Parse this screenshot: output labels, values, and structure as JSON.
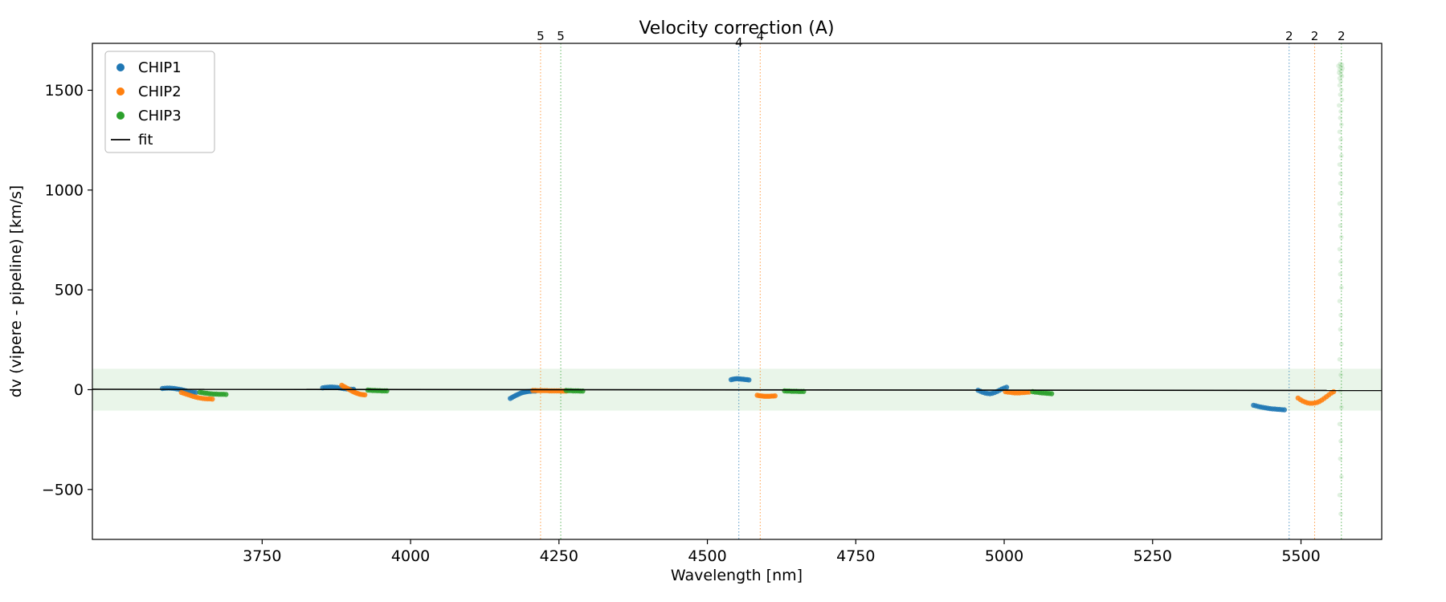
{
  "chart_data": {
    "type": "scatter",
    "title": "Velocity correction (A)",
    "xlabel": "Wavelength [nm]",
    "ylabel": "dv (vipere - pipeline) [km/s]",
    "xlim": [
      3464,
      5636
    ],
    "ylim": [
      -750,
      1735
    ],
    "xticks": [
      3750,
      4000,
      4250,
      4500,
      4750,
      5000,
      5250,
      5500
    ],
    "yticks": [
      -500,
      0,
      500,
      1000,
      1500
    ],
    "grid": false,
    "band": {
      "color": "#2ca02c",
      "alpha": 0.1,
      "ymin": -105,
      "ymax": 105
    },
    "fit": {
      "label": "fit",
      "color": "#000000",
      "x": [
        3464,
        5636
      ],
      "y": [
        2,
        -4
      ]
    },
    "vlines": [
      {
        "x": 4219,
        "label": "5",
        "color": "#ff7f0e"
      },
      {
        "x": 4253,
        "label": "5",
        "color": "#2ca02c"
      },
      {
        "x": 4553,
        "label": "4",
        "color": "#1f77b4",
        "label_dy": 8
      },
      {
        "x": 4589,
        "label": "4",
        "color": "#ff7f0e"
      },
      {
        "x": 5480,
        "label": "2",
        "color": "#1f77b4"
      },
      {
        "x": 5523,
        "label": "2",
        "color": "#ff7f0e"
      },
      {
        "x": 5568,
        "label": "2",
        "color": "#2ca02c"
      }
    ],
    "legend": {
      "position": "upper-left",
      "entries": [
        {
          "label": "CHIP1",
          "color": "#1f77b4",
          "type": "dot"
        },
        {
          "label": "CHIP2",
          "color": "#ff7f0e",
          "type": "dot"
        },
        {
          "label": "CHIP3",
          "color": "#2ca02c",
          "type": "dot"
        },
        {
          "label": "fit",
          "color": "#000000",
          "type": "line"
        }
      ]
    },
    "series": [
      {
        "name": "CHIP1",
        "color": "#1f77b4",
        "alpha": 0.85,
        "marker_size": 3.2,
        "in_legend": true,
        "points": [
          [
            3582,
            6
          ],
          [
            3586,
            7
          ],
          [
            3590,
            8
          ],
          [
            3594,
            8
          ],
          [
            3598,
            7
          ],
          [
            3602,
            6
          ],
          [
            3606,
            4
          ],
          [
            3610,
            2
          ],
          [
            3614,
            0
          ],
          [
            3618,
            -3
          ],
          [
            3622,
            -6
          ],
          [
            3626,
            -9
          ],
          [
            3630,
            -12
          ],
          [
            3634,
            -14
          ],
          [
            3638,
            -15
          ],
          [
            3852,
            9
          ],
          [
            3856,
            11
          ],
          [
            3860,
            12
          ],
          [
            3864,
            13
          ],
          [
            3868,
            13
          ],
          [
            3872,
            12
          ],
          [
            3876,
            11
          ],
          [
            3880,
            9
          ],
          [
            3884,
            7
          ],
          [
            3888,
            5
          ],
          [
            3892,
            4
          ],
          [
            3896,
            3
          ],
          [
            3900,
            2
          ],
          [
            3904,
            2
          ],
          [
            4168,
            -44
          ],
          [
            4171,
            -39
          ],
          [
            4174,
            -34
          ],
          [
            4177,
            -29
          ],
          [
            4180,
            -25
          ],
          [
            4183,
            -21
          ],
          [
            4186,
            -17
          ],
          [
            4189,
            -14
          ],
          [
            4192,
            -12
          ],
          [
            4195,
            -10
          ],
          [
            4198,
            -9
          ],
          [
            4202,
            -8
          ],
          [
            4206,
            -7
          ],
          [
            4210,
            -7
          ],
          [
            4540,
            50
          ],
          [
            4543,
            52
          ],
          [
            4546,
            54
          ],
          [
            4549,
            55
          ],
          [
            4552,
            55
          ],
          [
            4555,
            54
          ],
          [
            4558,
            53
          ],
          [
            4561,
            52
          ],
          [
            4564,
            51
          ],
          [
            4567,
            50
          ],
          [
            4570,
            49
          ],
          [
            4956,
            -3
          ],
          [
            4960,
            -8
          ],
          [
            4964,
            -13
          ],
          [
            4968,
            -17
          ],
          [
            4972,
            -19
          ],
          [
            4976,
            -20
          ],
          [
            4980,
            -18
          ],
          [
            4984,
            -14
          ],
          [
            4988,
            -9
          ],
          [
            4992,
            -3
          ],
          [
            4996,
            3
          ],
          [
            5000,
            8
          ],
          [
            5004,
            12
          ],
          [
            5420,
            -78
          ],
          [
            5424,
            -81
          ],
          [
            5428,
            -84
          ],
          [
            5432,
            -87
          ],
          [
            5436,
            -89
          ],
          [
            5440,
            -91
          ],
          [
            5444,
            -93
          ],
          [
            5448,
            -95
          ],
          [
            5452,
            -96
          ],
          [
            5456,
            -97
          ],
          [
            5460,
            -98
          ],
          [
            5464,
            -99
          ],
          [
            5468,
            -100
          ],
          [
            5472,
            -101
          ]
        ]
      },
      {
        "name": "CHIP2",
        "color": "#ff7f0e",
        "alpha": 0.85,
        "marker_size": 3.2,
        "in_legend": true,
        "points": [
          [
            3614,
            -14
          ],
          [
            3618,
            -18
          ],
          [
            3622,
            -22
          ],
          [
            3626,
            -26
          ],
          [
            3630,
            -30
          ],
          [
            3634,
            -34
          ],
          [
            3638,
            -37
          ],
          [
            3642,
            -40
          ],
          [
            3646,
            -42
          ],
          [
            3650,
            -44
          ],
          [
            3654,
            -45
          ],
          [
            3658,
            -46
          ],
          [
            3662,
            -46
          ],
          [
            3666,
            -47
          ],
          [
            3884,
            22
          ],
          [
            3887,
            17
          ],
          [
            3890,
            12
          ],
          [
            3893,
            7
          ],
          [
            3896,
            2
          ],
          [
            3899,
            -3
          ],
          [
            3902,
            -8
          ],
          [
            3905,
            -12
          ],
          [
            3908,
            -16
          ],
          [
            3911,
            -19
          ],
          [
            3914,
            -22
          ],
          [
            3917,
            -24
          ],
          [
            3920,
            -25
          ],
          [
            3923,
            -26
          ],
          [
            4206,
            -4
          ],
          [
            4210,
            -4
          ],
          [
            4214,
            -5
          ],
          [
            4218,
            -5
          ],
          [
            4222,
            -5
          ],
          [
            4226,
            -5
          ],
          [
            4230,
            -5
          ],
          [
            4234,
            -6
          ],
          [
            4238,
            -6
          ],
          [
            4242,
            -6
          ],
          [
            4246,
            -6
          ],
          [
            4250,
            -6
          ],
          [
            4254,
            -7
          ],
          [
            4258,
            -7
          ],
          [
            4262,
            -7
          ],
          [
            4584,
            -28
          ],
          [
            4587,
            -30
          ],
          [
            4590,
            -31
          ],
          [
            4593,
            -32
          ],
          [
            4596,
            -33
          ],
          [
            4599,
            -33
          ],
          [
            4602,
            -33
          ],
          [
            4605,
            -33
          ],
          [
            4608,
            -32
          ],
          [
            4611,
            -32
          ],
          [
            4614,
            -31
          ],
          [
            5002,
            -10
          ],
          [
            5006,
            -12
          ],
          [
            5010,
            -13
          ],
          [
            5014,
            -15
          ],
          [
            5018,
            -16
          ],
          [
            5022,
            -16
          ],
          [
            5026,
            -16
          ],
          [
            5030,
            -15
          ],
          [
            5034,
            -14
          ],
          [
            5038,
            -13
          ],
          [
            5042,
            -12
          ],
          [
            5495,
            -42
          ],
          [
            5499,
            -50
          ],
          [
            5503,
            -57
          ],
          [
            5507,
            -62
          ],
          [
            5511,
            -66
          ],
          [
            5515,
            -68
          ],
          [
            5519,
            -68
          ],
          [
            5523,
            -67
          ],
          [
            5527,
            -64
          ],
          [
            5531,
            -59
          ],
          [
            5535,
            -52
          ],
          [
            5539,
            -44
          ],
          [
            5543,
            -35
          ],
          [
            5547,
            -26
          ],
          [
            5551,
            -17
          ],
          [
            5555,
            -10
          ]
        ]
      },
      {
        "name": "CHIP3",
        "color": "#2ca02c",
        "alpha": 0.85,
        "marker_size": 3.2,
        "in_legend": true,
        "points": [
          [
            3645,
            -13
          ],
          [
            3649,
            -15
          ],
          [
            3653,
            -17
          ],
          [
            3657,
            -18
          ],
          [
            3661,
            -20
          ],
          [
            3665,
            -21
          ],
          [
            3669,
            -22
          ],
          [
            3673,
            -22
          ],
          [
            3677,
            -23
          ],
          [
            3681,
            -23
          ],
          [
            3685,
            -23
          ],
          [
            3689,
            -24
          ],
          [
            3928,
            -2
          ],
          [
            3932,
            -3
          ],
          [
            3936,
            -4
          ],
          [
            3940,
            -4
          ],
          [
            3944,
            -5
          ],
          [
            3948,
            -5
          ],
          [
            3952,
            -6
          ],
          [
            3956,
            -6
          ],
          [
            3960,
            -6
          ],
          [
            4262,
            -4
          ],
          [
            4266,
            -5
          ],
          [
            4270,
            -5
          ],
          [
            4274,
            -6
          ],
          [
            4278,
            -6
          ],
          [
            4282,
            -6
          ],
          [
            4286,
            -7
          ],
          [
            4290,
            -7
          ],
          [
            4630,
            -6
          ],
          [
            4634,
            -7
          ],
          [
            4638,
            -7
          ],
          [
            4642,
            -8
          ],
          [
            4646,
            -8
          ],
          [
            4650,
            -8
          ],
          [
            4654,
            -9
          ],
          [
            4658,
            -9
          ],
          [
            4662,
            -9
          ],
          [
            5048,
            -10
          ],
          [
            5052,
            -12
          ],
          [
            5056,
            -13
          ],
          [
            5060,
            -15
          ],
          [
            5064,
            -16
          ],
          [
            5068,
            -17
          ],
          [
            5072,
            -18
          ],
          [
            5076,
            -19
          ],
          [
            5080,
            -20
          ]
        ]
      },
      {
        "name": "CHIP3-outlier-column",
        "color": "#2ca02c",
        "alpha": 0.15,
        "marker_size": 2.8,
        "in_legend": false,
        "points": [
          [
            5566,
            1632
          ],
          [
            5569,
            1628
          ],
          [
            5563,
            1622
          ],
          [
            5567,
            1616
          ],
          [
            5570,
            1610
          ],
          [
            5565,
            1603
          ],
          [
            5568,
            1596
          ],
          [
            5564,
            1588
          ],
          [
            5567,
            1579
          ],
          [
            5569,
            1570
          ],
          [
            5565,
            1560
          ],
          [
            5567,
            1545
          ],
          [
            5565,
            1525
          ],
          [
            5568,
            1502
          ],
          [
            5566,
            1478
          ],
          [
            5569,
            1452
          ],
          [
            5564,
            1424
          ],
          [
            5567,
            1394
          ],
          [
            5566,
            1362
          ],
          [
            5568,
            1328
          ],
          [
            5565,
            1292
          ],
          [
            5567,
            1254
          ],
          [
            5566,
            1214
          ],
          [
            5568,
            1172
          ],
          [
            5565,
            1128
          ],
          [
            5567,
            1082
          ],
          [
            5566,
            1034
          ],
          [
            5568,
            984
          ],
          [
            5565,
            932
          ],
          [
            5567,
            878
          ],
          [
            5566,
            822
          ],
          [
            5568,
            764
          ],
          [
            5565,
            704
          ],
          [
            5567,
            642
          ],
          [
            5566,
            578
          ],
          [
            5568,
            512
          ],
          [
            5565,
            444
          ],
          [
            5567,
            374
          ],
          [
            5566,
            302
          ],
          [
            5568,
            228
          ],
          [
            5565,
            152
          ],
          [
            5567,
            74
          ],
          [
            5566,
            -6
          ],
          [
            5568,
            -88
          ],
          [
            5565,
            -172
          ],
          [
            5567,
            -258
          ],
          [
            5566,
            -346
          ],
          [
            5568,
            -436
          ],
          [
            5565,
            -528
          ],
          [
            5567,
            -622
          ]
        ]
      }
    ]
  }
}
